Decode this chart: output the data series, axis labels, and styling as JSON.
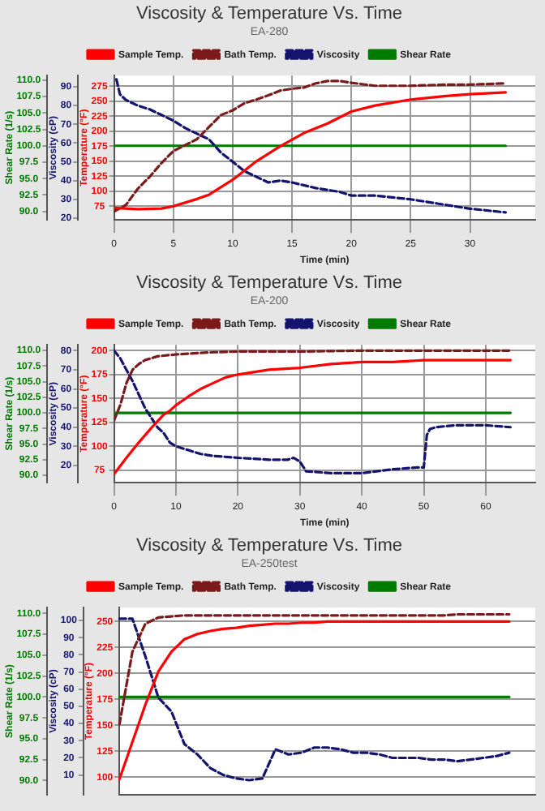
{
  "chart_data": [
    {
      "type": "line",
      "title": "Viscosity & Temperature Vs. Time",
      "subtitle": "EA-280",
      "xlabel": "Time (min)",
      "ylabel": "Temperature (°F)",
      "y2label": "Viscosity (cP)",
      "y3label": "Shear Rate (1/s)",
      "legend": "top",
      "grid": true,
      "xlim": [
        0,
        35.5
      ],
      "xticks": [
        0,
        5,
        10,
        15,
        20,
        25,
        30
      ],
      "ylim": [
        52,
        293
      ],
      "yticks": [
        75,
        100,
        125,
        150,
        175,
        200,
        225,
        250,
        275
      ],
      "y2lim": [
        19,
        96
      ],
      "y2ticks": [
        20,
        30,
        40,
        50,
        60,
        70,
        80,
        90
      ],
      "y3lim": [
        88.7,
        110.7
      ],
      "y3ticks": [
        {
          "value": 90,
          "label": "90.0"
        },
        {
          "value": 92.5,
          "label": "92.5"
        },
        {
          "value": 95,
          "label": "95.0"
        },
        {
          "value": 97.5,
          "label": "97.5"
        },
        {
          "value": 100,
          "label": "100.0"
        },
        {
          "value": 102.5,
          "label": "102.5"
        },
        {
          "value": 105,
          "label": "105.0"
        },
        {
          "value": 107.5,
          "label": "107.5"
        },
        {
          "value": 110,
          "label": "110.0"
        }
      ],
      "series": [
        {
          "name": "Sample Temp.",
          "color": "#ff0000",
          "line_style": "solid",
          "x": [
            0,
            2,
            4,
            5,
            7,
            8,
            10,
            12,
            14,
            16,
            18,
            20,
            22,
            25,
            28,
            30,
            33
          ],
          "values": [
            72,
            70,
            71,
            75,
            87,
            94,
            119,
            150,
            175,
            197,
            213,
            233,
            243,
            253,
            259,
            262,
            265
          ]
        },
        {
          "name": "Bath Temp.",
          "color": "#7a1a1a",
          "line_style": "dashed",
          "x": [
            0,
            1,
            2,
            3,
            4,
            5,
            6,
            7,
            8,
            9,
            10,
            11,
            12,
            13,
            14,
            15,
            16,
            17,
            18,
            19,
            20,
            22,
            25,
            28,
            30,
            33
          ],
          "values": [
            66,
            77,
            104,
            124,
            147,
            167,
            177,
            187,
            207,
            227,
            235,
            247,
            253,
            260,
            268,
            271,
            273,
            280,
            284,
            284,
            281,
            276,
            276,
            278,
            278,
            280
          ]
        },
        {
          "name": "Viscosity",
          "color": "#14146e",
          "line_style": "dashed",
          "axis": "y2",
          "x": [
            0.2,
            0.5,
            1,
            2,
            3,
            4,
            5,
            6,
            7,
            8,
            9,
            10,
            11,
            12,
            13,
            14,
            15,
            17,
            19,
            20,
            22,
            25,
            28,
            30,
            33
          ],
          "values": [
            94,
            86,
            83,
            80,
            78,
            75,
            72,
            68,
            65,
            62,
            55,
            50,
            45,
            42,
            39,
            40,
            39,
            36,
            34,
            32,
            32,
            30,
            27,
            25,
            23
          ]
        },
        {
          "name": "Shear Rate",
          "color": "#007a00",
          "line_style": "solid",
          "axis": "y3",
          "x": [
            0,
            33
          ],
          "values": [
            100,
            100
          ]
        }
      ]
    },
    {
      "type": "line",
      "title": "Viscosity & Temperature Vs. Time",
      "subtitle": "EA-200",
      "xlabel": "Time (min)",
      "ylabel": "Temperature (°F)",
      "y2label": "Viscosity (cP)",
      "y3label": "Shear Rate (1/s)",
      "legend": "top",
      "grid": true,
      "xlim": [
        0,
        68
      ],
      "xticks": [
        0,
        10,
        20,
        30,
        40,
        50,
        60
      ],
      "ylim": [
        62,
        206
      ],
      "yticks": [
        75,
        100,
        125,
        150,
        175,
        200
      ],
      "y2lim": [
        11,
        83
      ],
      "y2ticks": [
        20,
        30,
        40,
        50,
        60,
        70,
        80
      ],
      "y3lim": [
        88.8,
        110.9
      ],
      "y3ticks": [
        {
          "value": 90,
          "label": "90.0"
        },
        {
          "value": 92.5,
          "label": "92.5"
        },
        {
          "value": 95,
          "label": "95.0"
        },
        {
          "value": 97.5,
          "label": "97.5"
        },
        {
          "value": 100,
          "label": "100.0"
        },
        {
          "value": 102.5,
          "label": "102.5"
        },
        {
          "value": 105,
          "label": "105.0"
        },
        {
          "value": 107.5,
          "label": "107.5"
        },
        {
          "value": 110,
          "label": "110.0"
        }
      ],
      "series": [
        {
          "name": "Sample Temp.",
          "color": "#ff0000",
          "line_style": "solid",
          "x": [
            0,
            2,
            4,
            6,
            8,
            9,
            10,
            12,
            14,
            16,
            18,
            20,
            25,
            30,
            35,
            40,
            45,
            50,
            55,
            60,
            64
          ],
          "values": [
            71,
            88,
            104,
            119,
            133,
            137,
            143,
            152,
            160,
            166,
            172,
            175,
            180,
            182,
            186,
            188,
            188,
            190,
            190,
            190,
            190
          ]
        },
        {
          "name": "Bath Temp.",
          "color": "#7a1a1a",
          "line_style": "dashed",
          "x": [
            0,
            1,
            2,
            3,
            4,
            5,
            7,
            10,
            15,
            20,
            30,
            40,
            50,
            64
          ],
          "values": [
            127,
            143,
            166,
            180,
            186,
            190,
            194,
            196,
            198,
            199,
            199,
            200,
            200,
            200
          ]
        },
        {
          "name": "Viscosity",
          "color": "#14146e",
          "line_style": "dashed",
          "axis": "y2",
          "x": [
            0,
            1,
            2,
            3,
            4,
            5,
            6,
            7,
            8,
            9,
            10,
            12,
            14,
            16,
            20,
            25,
            28,
            29,
            30,
            31,
            35,
            40,
            45,
            49,
            50,
            50.5,
            51,
            52,
            55,
            60,
            64
          ],
          "values": [
            80,
            76,
            70,
            64,
            57,
            50,
            45,
            40,
            37,
            32,
            30,
            28,
            26,
            25,
            24,
            23,
            23,
            24,
            22,
            17,
            16,
            16,
            18,
            19,
            19,
            36,
            39,
            40,
            41,
            41,
            40
          ]
        },
        {
          "name": "Shear Rate",
          "color": "#007a00",
          "line_style": "solid",
          "axis": "y3",
          "x": [
            0,
            64
          ],
          "values": [
            100,
            100
          ]
        }
      ]
    },
    {
      "type": "line",
      "title": "Viscosity & Temperature Vs. Time",
      "subtitle": "EA-250test",
      "ylabel": "Temperature (°F)",
      "y2label": "Viscosity (cP)",
      "y3label": "Shear Rate (1/s)",
      "legend": "top",
      "grid": "y",
      "tick_labels": "y",
      "categories": [
        null,
        null,
        null,
        null,
        null,
        null,
        null,
        null,
        null,
        null,
        null,
        null,
        null,
        null,
        null,
        null,
        null,
        null,
        null,
        null,
        null,
        null,
        null,
        null,
        null,
        null,
        null,
        null,
        null,
        null,
        null,
        null,
        null
      ],
      "ylim": [
        83,
        263.5
      ],
      "yticks": [
        100,
        125,
        150,
        175,
        200,
        225,
        250
      ],
      "y2lim": [
        -1.5,
        107.5
      ],
      "y2ticks": [
        10,
        20,
        30,
        40,
        50,
        60,
        70,
        80,
        90,
        100
      ],
      "y3lim": [
        88.3,
        110.7
      ],
      "y3ticks": [
        {
          "value": 90,
          "label": "90.0"
        },
        {
          "value": 92.5,
          "label": "92.5"
        },
        {
          "value": 95,
          "label": "95.0"
        },
        {
          "value": 97.5,
          "label": "97.5"
        },
        {
          "value": 100,
          "label": "100.0"
        },
        {
          "value": 102.5,
          "label": "102.5"
        },
        {
          "value": 105,
          "label": "105.0"
        },
        {
          "value": 107.5,
          "label": "107.5"
        },
        {
          "value": 110,
          "label": "110.0"
        }
      ],
      "series": [
        {
          "name": "Sample Temp.",
          "color": "#ff0000",
          "line_style": "solid",
          "values": [
            98,
            134,
            170,
            202,
            221,
            233,
            238,
            241,
            243,
            244,
            246,
            247,
            248,
            248,
            249,
            249,
            250,
            250,
            250,
            250,
            250,
            250,
            250,
            250,
            250,
            250,
            250,
            250,
            250,
            250,
            250,
            null,
            null
          ]
        },
        {
          "name": "Bath Temp.",
          "color": "#7a1a1a",
          "line_style": "dashed",
          "values": [
            151,
            221,
            248,
            254,
            255,
            256,
            256,
            256,
            256,
            256,
            256,
            256,
            256,
            256,
            256,
            256,
            256,
            256,
            256,
            256,
            256,
            256,
            256,
            256,
            256,
            256,
            257,
            257,
            257,
            257,
            257,
            null,
            null
          ]
        },
        {
          "name": "Viscosity",
          "color": "#14146e",
          "line_style": "dashed",
          "axis": "y2",
          "values": [
            101,
            101,
            79,
            55,
            47,
            28,
            22,
            14,
            10,
            8,
            7,
            8,
            25,
            22,
            23,
            26,
            26,
            25,
            23,
            23,
            22,
            20,
            20,
            20,
            19,
            19,
            18,
            19,
            20,
            21,
            23,
            null,
            null
          ]
        },
        {
          "name": "Shear Rate",
          "color": "#007a00",
          "line_style": "solid",
          "axis": "y3",
          "values": [
            100,
            100,
            100,
            100,
            100,
            100,
            100,
            100,
            100,
            100,
            100,
            100,
            100,
            100,
            100,
            100,
            100,
            100,
            100,
            100,
            100,
            100,
            100,
            100,
            100,
            100,
            100,
            100,
            100,
            100,
            100,
            null,
            null
          ]
        }
      ]
    }
  ]
}
